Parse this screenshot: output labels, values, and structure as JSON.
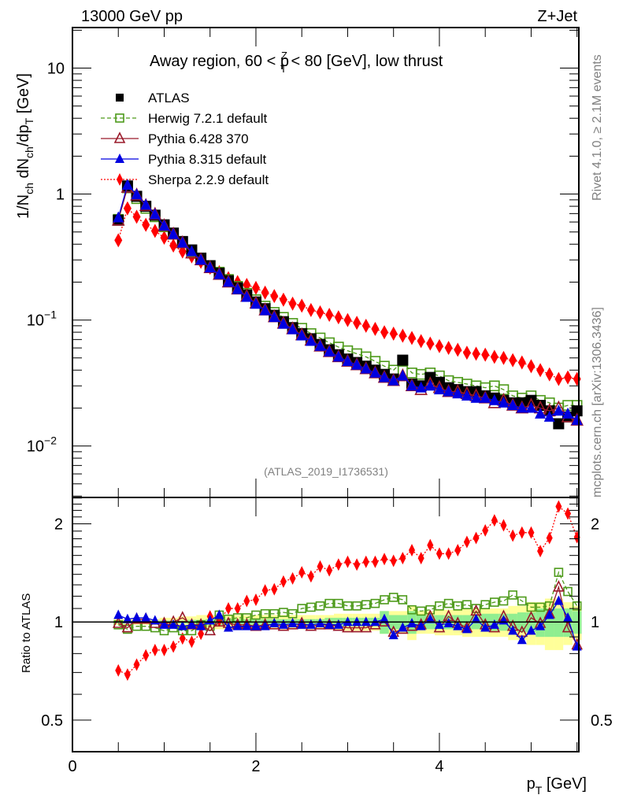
{
  "header": {
    "left": "13000 GeV pp",
    "right": "Z+Jet"
  },
  "side_labels": {
    "rivet": "Rivet 4.1.0, ≥ 2.1M events",
    "mcplots": "mcplots.cern.ch [arXiv:1306.3436]"
  },
  "chart_data": [
    {
      "type": "scatter",
      "panel": "main",
      "title": "Away region, 60 < p_T^Z < 80 [GeV], low thrust",
      "title_parts": {
        "pre": "Away region, 60 < p",
        "sub": "T",
        "sup": "Z",
        "post": " < 80 [GeV], low thrust"
      },
      "ylabel": "1/N_ch dN_ch/dp_T [GeV]",
      "ylabel_parts": {
        "a": "1/N",
        "a_sub": "ch",
        "b": " dN",
        "b_sub": "ch",
        "c": "/dp",
        "c_sub": "T",
        "d": " [GeV]"
      },
      "yscale": "log",
      "ylim": [
        0.0039,
        21
      ],
      "xlim": [
        0,
        5.52
      ],
      "ytick_labels": [
        {
          "v": 10,
          "base": "10",
          "exp": ""
        },
        {
          "v": 1,
          "base": "1",
          "exp": ""
        },
        {
          "v": 0.1,
          "base": "10",
          "exp": "−1"
        },
        {
          "v": 0.01,
          "base": "10",
          "exp": "−2"
        }
      ],
      "analysis_label": "(ATLAS_2019_I1736531)",
      "legend": {
        "placement": "top-left",
        "entries": [
          {
            "name": "ATLAS",
            "marker": "square-filled",
            "color": "#000000",
            "line": "none"
          },
          {
            "name": "Herwig 7.2.1 default",
            "marker": "square-open",
            "color": "#4d9a1a",
            "line": "dashed"
          },
          {
            "name": "Pythia 6.428 370",
            "marker": "triangle-open",
            "color": "#9a1a2a",
            "line": "solid"
          },
          {
            "name": "Pythia 8.315 default",
            "marker": "triangle-filled",
            "color": "#0000e0",
            "line": "solid"
          },
          {
            "name": "Sherpa 2.2.9 default",
            "marker": "diamond-filled",
            "color": "#ff0000",
            "line": "dotted"
          }
        ]
      },
      "x": [
        0.5,
        0.6,
        0.7,
        0.8,
        0.9,
        1.0,
        1.1,
        1.2,
        1.3,
        1.4,
        1.5,
        1.6,
        1.7,
        1.8,
        1.9,
        2.0,
        2.1,
        2.2,
        2.3,
        2.4,
        2.5,
        2.6,
        2.7,
        2.8,
        2.9,
        3.0,
        3.1,
        3.2,
        3.3,
        3.4,
        3.5,
        3.6,
        3.7,
        3.8,
        3.9,
        4.0,
        4.1,
        4.2,
        4.3,
        4.4,
        4.5,
        4.6,
        4.7,
        4.8,
        4.9,
        5.0,
        5.1,
        5.2,
        5.3,
        5.4,
        5.5
      ],
      "series": [
        {
          "name": "ATLAS",
          "values": [
            0.62,
            1.16,
            0.96,
            0.8,
            0.68,
            0.57,
            0.49,
            0.42,
            0.36,
            0.31,
            0.27,
            0.235,
            0.205,
            0.18,
            0.158,
            0.139,
            0.123,
            0.109,
            0.097,
            0.087,
            0.078,
            0.071,
            0.064,
            0.058,
            0.053,
            0.049,
            0.046,
            0.043,
            0.04,
            0.037,
            0.034,
            0.048,
            0.031,
            0.03,
            0.035,
            0.032,
            0.029,
            0.028,
            0.027,
            0.027,
            0.025,
            0.024,
            0.023,
            0.022,
            0.022,
            0.023,
            0.021,
            0.019,
            0.015,
            0.017,
            0.019
          ]
        },
        {
          "name": "Herwig 7.2.1 default",
          "values": [
            0.63,
            1.12,
            0.92,
            0.77,
            0.66,
            0.55,
            0.48,
            0.41,
            0.35,
            0.3,
            0.26,
            0.24,
            0.21,
            0.185,
            0.163,
            0.145,
            0.129,
            0.115,
            0.105,
            0.094,
            0.086,
            0.078,
            0.072,
            0.066,
            0.061,
            0.057,
            0.054,
            0.051,
            0.047,
            0.043,
            0.04,
            0.047,
            0.038,
            0.037,
            0.038,
            0.036,
            0.033,
            0.032,
            0.031,
            0.03,
            0.029,
            0.03,
            0.028,
            0.025,
            0.024,
            0.025,
            0.023,
            0.022,
            0.02,
            0.021,
            0.021
          ]
        },
        {
          "name": "Pythia 6.428 370",
          "values": [
            0.62,
            1.13,
            0.98,
            0.81,
            0.69,
            0.56,
            0.48,
            0.41,
            0.34,
            0.3,
            0.26,
            0.23,
            0.2,
            0.176,
            0.154,
            0.136,
            0.12,
            0.106,
            0.094,
            0.085,
            0.076,
            0.069,
            0.062,
            0.056,
            0.051,
            0.047,
            0.044,
            0.041,
            0.038,
            0.035,
            0.033,
            0.036,
            0.03,
            0.028,
            0.031,
            0.029,
            0.027,
            0.027,
            0.026,
            0.025,
            0.024,
            0.022,
            0.023,
            0.021,
            0.02,
            0.021,
            0.02,
            0.019,
            0.02,
            0.017,
            0.016
          ]
        },
        {
          "name": "Pythia 8.315 default",
          "values": [
            0.65,
            1.18,
            0.99,
            0.82,
            0.69,
            0.56,
            0.48,
            0.41,
            0.35,
            0.3,
            0.26,
            0.23,
            0.2,
            0.175,
            0.152,
            0.134,
            0.119,
            0.105,
            0.093,
            0.084,
            0.075,
            0.068,
            0.062,
            0.056,
            0.051,
            0.047,
            0.044,
            0.041,
            0.038,
            0.035,
            0.033,
            0.036,
            0.03,
            0.029,
            0.03,
            0.028,
            0.027,
            0.026,
            0.025,
            0.024,
            0.024,
            0.023,
            0.022,
            0.021,
            0.02,
            0.02,
            0.018,
            0.017,
            0.019,
            0.018,
            0.016
          ]
        },
        {
          "name": "Sherpa 2.2.9 default",
          "values": [
            0.43,
            0.77,
            0.66,
            0.57,
            0.51,
            0.45,
            0.39,
            0.35,
            0.32,
            0.29,
            0.26,
            0.24,
            0.215,
            0.2,
            0.19,
            0.18,
            0.165,
            0.155,
            0.145,
            0.135,
            0.13,
            0.12,
            0.115,
            0.11,
            0.105,
            0.1,
            0.095,
            0.09,
            0.085,
            0.08,
            0.078,
            0.075,
            0.072,
            0.068,
            0.065,
            0.062,
            0.06,
            0.058,
            0.055,
            0.054,
            0.053,
            0.051,
            0.05,
            0.048,
            0.046,
            0.043,
            0.04,
            0.037,
            0.034,
            0.035,
            0.034
          ]
        }
      ]
    },
    {
      "type": "scatter",
      "panel": "ratio",
      "ylabel": "Ratio to ATLAS",
      "yscale": "log",
      "ylim": [
        0.4,
        2.41
      ],
      "xlim": [
        0,
        5.52
      ],
      "xlabel": "p_T [GeV]",
      "xlabel_parts": {
        "pre": "p",
        "sub": "T",
        "post": " [GeV]"
      },
      "xtick_labels": [
        "0",
        "2",
        "4"
      ],
      "xticks": [
        0,
        2,
        4
      ],
      "ytick_labels": [
        "2",
        "1",
        "0.5"
      ],
      "yticks": [
        2,
        1,
        0.5
      ],
      "reference_line": 1,
      "bands": {
        "stat_color": "#90ee90",
        "total_color": "#ffff99",
        "stat_half": [
          0.01,
          0.01,
          0.01,
          0.01,
          0.01,
          0.01,
          0.01,
          0.01,
          0.015,
          0.015,
          0.02,
          0.02,
          0.02,
          0.02,
          0.02,
          0.02,
          0.02,
          0.02,
          0.02,
          0.02,
          0.02,
          0.02,
          0.02,
          0.03,
          0.03,
          0.03,
          0.03,
          0.03,
          0.03,
          0.08,
          0.05,
          0.05,
          0.08,
          0.05,
          0.05,
          0.05,
          0.05,
          0.05,
          0.05,
          0.05,
          0.06,
          0.06,
          0.06,
          0.06,
          0.07,
          0.07,
          0.1,
          0.1,
          0.1,
          0.1,
          0.08
        ],
        "total_half": [
          0.02,
          0.02,
          0.02,
          0.02,
          0.02,
          0.03,
          0.03,
          0.04,
          0.04,
          0.05,
          0.05,
          0.05,
          0.05,
          0.05,
          0.05,
          0.05,
          0.05,
          0.05,
          0.05,
          0.05,
          0.05,
          0.05,
          0.05,
          0.05,
          0.06,
          0.06,
          0.06,
          0.06,
          0.06,
          0.08,
          0.08,
          0.08,
          0.12,
          0.08,
          0.08,
          0.09,
          0.09,
          0.09,
          0.1,
          0.1,
          0.1,
          0.1,
          0.1,
          0.12,
          0.12,
          0.15,
          0.15,
          0.18,
          0.18,
          0.15,
          0.12
        ]
      },
      "series": [
        {
          "name": "Herwig 7.2.1 default",
          "values": [
            0.98,
            0.95,
            0.97,
            0.97,
            0.96,
            0.94,
            0.96,
            0.94,
            0.94,
            0.98,
            0.97,
            1.05,
            1.02,
            1.03,
            1.03,
            1.05,
            1.06,
            1.06,
            1.07,
            1.06,
            1.1,
            1.11,
            1.12,
            1.14,
            1.14,
            1.12,
            1.12,
            1.13,
            1.14,
            1.17,
            1.19,
            1.17,
            1.09,
            1.08,
            1.09,
            1.12,
            1.14,
            1.12,
            1.13,
            1.1,
            1.13,
            1.15,
            1.16,
            1.21,
            1.16,
            1.11,
            1.11,
            1.12,
            1.42,
            1.24,
            1.12
          ]
        },
        {
          "name": "Pythia 6.428 370",
          "values": [
            0.99,
            0.96,
            1.02,
            1.02,
            0.99,
            0.99,
            1.0,
            1.03,
            0.98,
            0.98,
            0.94,
            1.0,
            0.99,
            0.98,
            0.98,
            0.97,
            0.98,
            0.98,
            0.97,
            0.98,
            0.99,
            0.97,
            0.98,
            0.98,
            0.97,
            0.96,
            0.96,
            0.96,
            0.98,
            1.0,
            0.93,
            0.95,
            0.97,
            0.98,
            1.04,
            0.96,
            1.04,
            0.99,
            0.96,
            1.08,
            0.98,
            0.96,
            1.04,
            0.97,
            0.93,
            1.03,
            0.99,
            1.06,
            1.28,
            0.96,
            0.85
          ]
        },
        {
          "name": "Pythia 8.315 default",
          "values": [
            1.05,
            1.02,
            1.03,
            1.03,
            1.01,
            0.98,
            0.98,
            0.97,
            0.98,
            0.97,
            1.01,
            1.05,
            0.96,
            0.97,
            0.97,
            0.97,
            0.97,
            0.99,
            0.98,
            0.99,
            0.98,
            0.98,
            0.99,
            0.98,
            0.98,
            1.0,
            1.0,
            1.0,
            1.0,
            1.02,
            0.91,
            0.96,
            0.99,
            0.97,
            1.02,
            0.98,
            0.99,
            0.97,
            0.95,
            1.02,
            0.96,
            0.98,
            1.01,
            0.94,
            0.88,
            0.94,
            0.97,
            1.05,
            1.16,
            1.03,
            0.84
          ]
        },
        {
          "name": "Sherpa 2.2.9 default",
          "values": [
            0.71,
            0.69,
            0.74,
            0.79,
            0.82,
            0.82,
            0.84,
            0.89,
            0.87,
            0.92,
            1.04,
            1.01,
            1.1,
            1.1,
            1.16,
            1.17,
            1.25,
            1.26,
            1.33,
            1.36,
            1.42,
            1.38,
            1.48,
            1.44,
            1.5,
            1.53,
            1.5,
            1.53,
            1.53,
            1.56,
            1.54,
            1.57,
            1.66,
            1.57,
            1.72,
            1.62,
            1.62,
            1.66,
            1.76,
            1.81,
            1.91,
            2.05,
            1.98,
            1.84,
            1.88,
            1.88,
            1.65,
            1.81,
            2.26,
            2.15,
            1.82
          ]
        }
      ]
    }
  ]
}
